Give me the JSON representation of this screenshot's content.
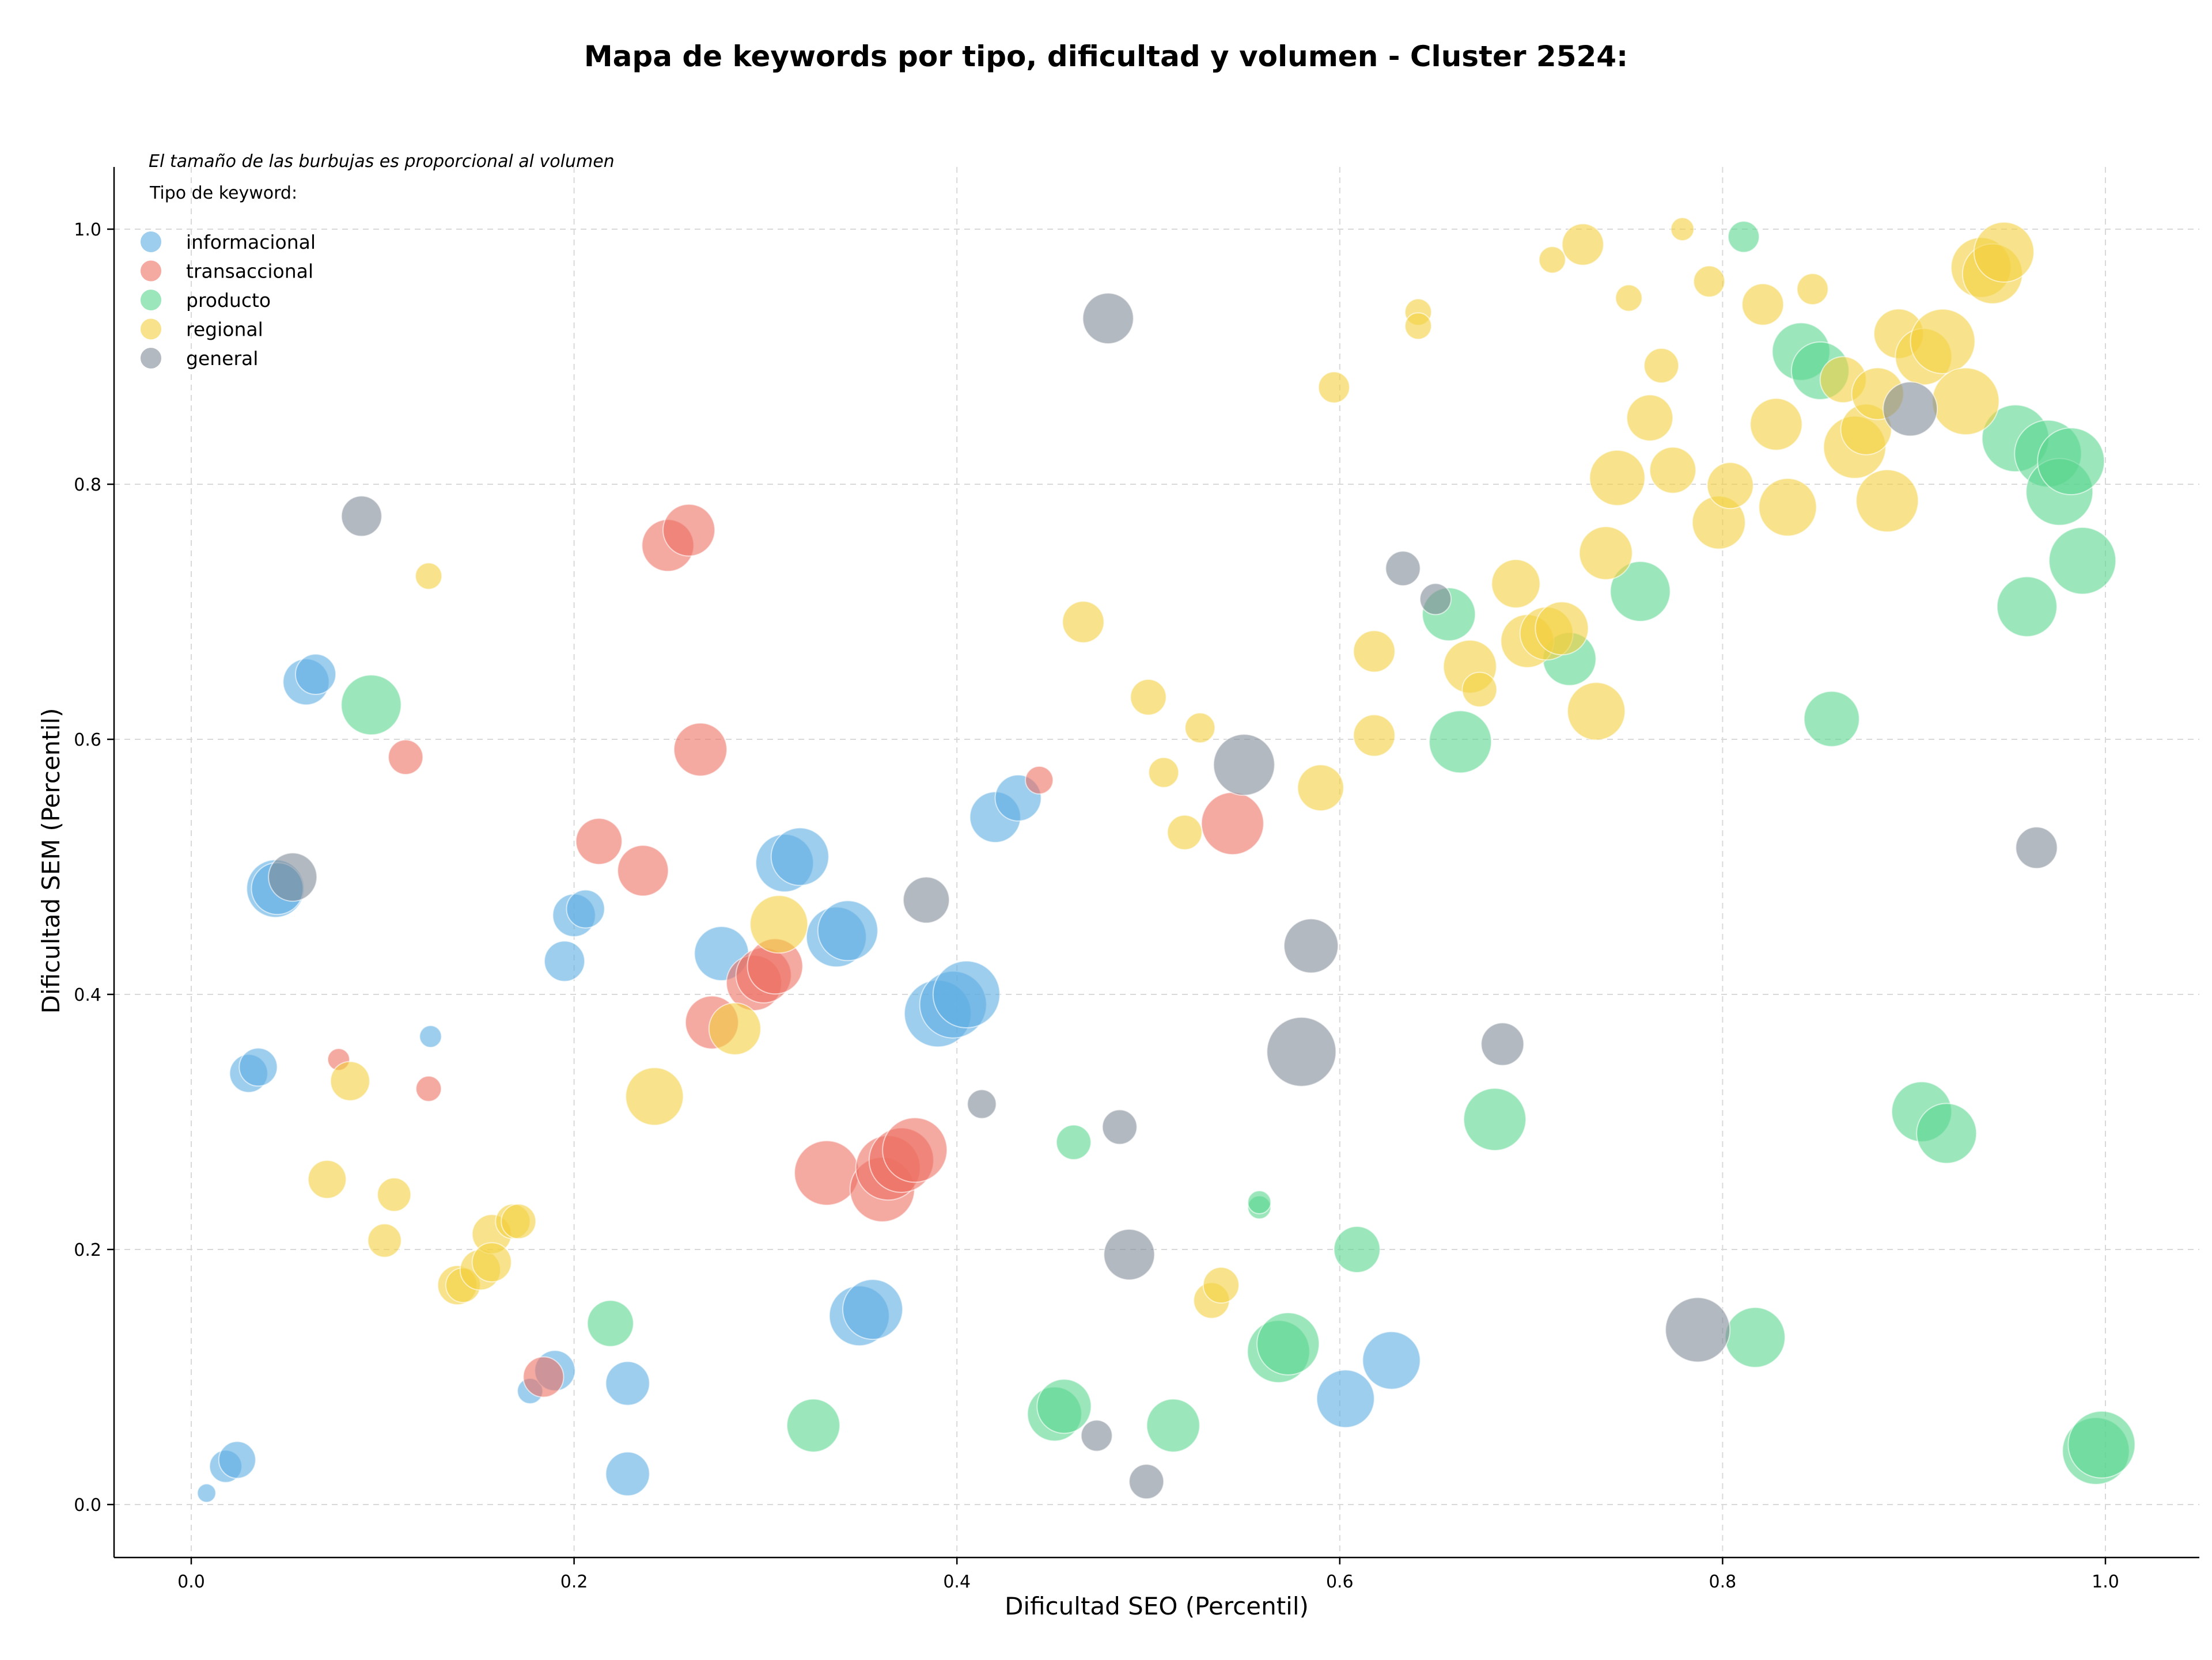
{
  "chart_data": {
    "type": "scatter",
    "title": "Mapa de keywords por tipo, dificultad y volumen - Cluster 2524:",
    "xlabel": "Dificultad SEO (Percentil)",
    "ylabel": "Dificultad SEM (Percentil)",
    "xlim": [
      -0.04,
      1.05
    ],
    "ylim": [
      -0.04,
      1.05
    ],
    "xticks": [
      "0.0",
      "0.2",
      "0.4",
      "0.6",
      "0.8",
      "1.0"
    ],
    "yticks": [
      "0.0",
      "0.2",
      "0.4",
      "0.6",
      "0.8",
      "1.0"
    ],
    "grid": true,
    "legend_position": "top-left",
    "note": "El tamaño de las burbujas es proporcional al volumen",
    "legend_title": "Tipo de keyword:",
    "series": [
      {
        "name": "informacional",
        "color": "#5dade2",
        "points": [
          [
            0.008,
            0.009,
            0.16
          ],
          [
            0.018,
            0.03,
            0.28
          ],
          [
            0.024,
            0.035,
            0.32
          ],
          [
            0.03,
            0.338,
            0.33
          ],
          [
            0.035,
            0.343,
            0.33
          ],
          [
            0.044,
            0.483,
            0.5
          ],
          [
            0.045,
            0.483,
            0.45
          ],
          [
            0.06,
            0.645,
            0.4
          ],
          [
            0.065,
            0.651,
            0.35
          ],
          [
            0.125,
            0.367,
            0.19
          ],
          [
            0.177,
            0.089,
            0.22
          ],
          [
            0.19,
            0.105,
            0.35
          ],
          [
            0.195,
            0.426,
            0.35
          ],
          [
            0.2,
            0.462,
            0.37
          ],
          [
            0.206,
            0.467,
            0.33
          ],
          [
            0.228,
            0.024,
            0.38
          ],
          [
            0.228,
            0.095,
            0.38
          ],
          [
            0.277,
            0.432,
            0.47
          ],
          [
            0.31,
            0.503,
            0.5
          ],
          [
            0.318,
            0.508,
            0.5
          ],
          [
            0.337,
            0.445,
            0.52
          ],
          [
            0.343,
            0.45,
            0.52
          ],
          [
            0.349,
            0.148,
            0.52
          ],
          [
            0.356,
            0.153,
            0.52
          ],
          [
            0.39,
            0.385,
            0.58
          ],
          [
            0.398,
            0.392,
            0.58
          ],
          [
            0.405,
            0.4,
            0.58
          ],
          [
            0.42,
            0.539,
            0.44
          ],
          [
            0.432,
            0.554,
            0.4
          ],
          [
            0.603,
            0.083,
            0.5
          ],
          [
            0.627,
            0.113,
            0.5
          ]
        ]
      },
      {
        "name": "transaccional",
        "color": "#ec7063",
        "points": [
          [
            0.077,
            0.349,
            0.19
          ],
          [
            0.112,
            0.586,
            0.3
          ],
          [
            0.124,
            0.326,
            0.22
          ],
          [
            0.184,
            0.1,
            0.35
          ],
          [
            0.213,
            0.52,
            0.4
          ],
          [
            0.236,
            0.497,
            0.44
          ],
          [
            0.249,
            0.752,
            0.45
          ],
          [
            0.26,
            0.764,
            0.45
          ],
          [
            0.266,
            0.592,
            0.46
          ],
          [
            0.272,
            0.378,
            0.46
          ],
          [
            0.294,
            0.409,
            0.48
          ],
          [
            0.299,
            0.415,
            0.48
          ],
          [
            0.305,
            0.422,
            0.48
          ],
          [
            0.332,
            0.26,
            0.56
          ],
          [
            0.361,
            0.247,
            0.56
          ],
          [
            0.364,
            0.264,
            0.56
          ],
          [
            0.371,
            0.27,
            0.56
          ],
          [
            0.378,
            0.278,
            0.56
          ],
          [
            0.443,
            0.568,
            0.24
          ],
          [
            0.544,
            0.534,
            0.54
          ]
        ]
      },
      {
        "name": "producto",
        "color": "#58d68d",
        "points": [
          [
            0.094,
            0.627,
            0.52
          ],
          [
            0.219,
            0.142,
            0.4
          ],
          [
            0.325,
            0.062,
            0.46
          ],
          [
            0.451,
            0.071,
            0.47
          ],
          [
            0.456,
            0.077,
            0.47
          ],
          [
            0.461,
            0.284,
            0.3
          ],
          [
            0.513,
            0.062,
            0.46
          ],
          [
            0.558,
            0.233,
            0.2
          ],
          [
            0.558,
            0.237,
            0.2
          ],
          [
            0.568,
            0.12,
            0.54
          ],
          [
            0.573,
            0.126,
            0.54
          ],
          [
            0.609,
            0.2,
            0.4
          ],
          [
            0.657,
            0.698,
            0.46
          ],
          [
            0.663,
            0.598,
            0.54
          ],
          [
            0.681,
            0.302,
            0.54
          ],
          [
            0.72,
            0.663,
            0.46
          ],
          [
            0.757,
            0.716,
            0.52
          ],
          [
            0.811,
            0.994,
            0.27
          ],
          [
            0.817,
            0.131,
            0.52
          ],
          [
            0.841,
            0.904,
            0.5
          ],
          [
            0.851,
            0.889,
            0.5
          ],
          [
            0.857,
            0.616,
            0.48
          ],
          [
            0.904,
            0.308,
            0.52
          ],
          [
            0.917,
            0.291,
            0.52
          ],
          [
            0.953,
            0.836,
            0.58
          ],
          [
            0.959,
            0.704,
            0.52
          ],
          [
            0.97,
            0.824,
            0.58
          ],
          [
            0.976,
            0.794,
            0.58
          ],
          [
            0.982,
            0.818,
            0.58
          ],
          [
            0.988,
            0.74,
            0.58
          ],
          [
            0.995,
            0.042,
            0.58
          ],
          [
            0.998,
            0.047,
            0.58
          ]
        ]
      },
      {
        "name": "regional",
        "color": "#f4d03f",
        "points": [
          [
            0.071,
            0.255,
            0.33
          ],
          [
            0.083,
            0.332,
            0.34
          ],
          [
            0.101,
            0.207,
            0.29
          ],
          [
            0.106,
            0.243,
            0.29
          ],
          [
            0.124,
            0.728,
            0.23
          ],
          [
            0.139,
            0.172,
            0.34
          ],
          [
            0.142,
            0.172,
            0.3
          ],
          [
            0.151,
            0.184,
            0.35
          ],
          [
            0.157,
            0.212,
            0.34
          ],
          [
            0.157,
            0.19,
            0.34
          ],
          [
            0.168,
            0.222,
            0.3
          ],
          [
            0.171,
            0.222,
            0.3
          ],
          [
            0.242,
            0.32,
            0.5
          ],
          [
            0.284,
            0.373,
            0.45
          ],
          [
            0.307,
            0.455,
            0.5
          ],
          [
            0.466,
            0.692,
            0.36
          ],
          [
            0.5,
            0.633,
            0.31
          ],
          [
            0.508,
            0.574,
            0.26
          ],
          [
            0.519,
            0.527,
            0.3
          ],
          [
            0.527,
            0.609,
            0.26
          ],
          [
            0.533,
            0.16,
            0.31
          ],
          [
            0.538,
            0.172,
            0.31
          ],
          [
            0.59,
            0.562,
            0.4
          ],
          [
            0.597,
            0.876,
            0.27
          ],
          [
            0.618,
            0.603,
            0.36
          ],
          [
            0.618,
            0.669,
            0.36
          ],
          [
            0.641,
            0.935,
            0.23
          ],
          [
            0.641,
            0.924,
            0.23
          ],
          [
            0.668,
            0.657,
            0.46
          ],
          [
            0.673,
            0.639,
            0.3
          ],
          [
            0.692,
            0.722,
            0.42
          ],
          [
            0.698,
            0.677,
            0.46
          ],
          [
            0.708,
            0.683,
            0.46
          ],
          [
            0.711,
            0.976,
            0.23
          ],
          [
            0.716,
            0.687,
            0.46
          ],
          [
            0.727,
            0.988,
            0.36
          ],
          [
            0.734,
            0.622,
            0.5
          ],
          [
            0.739,
            0.746,
            0.46
          ],
          [
            0.745,
            0.805,
            0.48
          ],
          [
            0.751,
            0.946,
            0.23
          ],
          [
            0.762,
            0.852,
            0.4
          ],
          [
            0.768,
            0.893,
            0.3
          ],
          [
            0.774,
            0.811,
            0.4
          ],
          [
            0.779,
            1.0,
            0.2
          ],
          [
            0.793,
            0.959,
            0.27
          ],
          [
            0.798,
            0.77,
            0.46
          ],
          [
            0.804,
            0.799,
            0.4
          ],
          [
            0.821,
            0.941,
            0.36
          ],
          [
            0.828,
            0.847,
            0.45
          ],
          [
            0.834,
            0.782,
            0.5
          ],
          [
            0.847,
            0.953,
            0.27
          ],
          [
            0.863,
            0.882,
            0.4
          ],
          [
            0.869,
            0.829,
            0.54
          ],
          [
            0.875,
            0.843,
            0.44
          ],
          [
            0.881,
            0.871,
            0.45
          ],
          [
            0.886,
            0.787,
            0.54
          ],
          [
            0.892,
            0.918,
            0.43
          ],
          [
            0.905,
            0.9,
            0.49
          ],
          [
            0.915,
            0.912,
            0.56
          ],
          [
            0.927,
            0.865,
            0.58
          ],
          [
            0.935,
            0.97,
            0.52
          ],
          [
            0.941,
            0.965,
            0.52
          ],
          [
            0.947,
            0.982,
            0.52
          ]
        ]
      },
      {
        "name": "general",
        "color": "#808b96",
        "points": [
          [
            0.053,
            0.492,
            0.42
          ],
          [
            0.089,
            0.775,
            0.35
          ],
          [
            0.384,
            0.474,
            0.4
          ],
          [
            0.413,
            0.314,
            0.25
          ],
          [
            0.473,
            0.054,
            0.27
          ],
          [
            0.479,
            0.93,
            0.44
          ],
          [
            0.485,
            0.296,
            0.3
          ],
          [
            0.49,
            0.196,
            0.44
          ],
          [
            0.499,
            0.018,
            0.3
          ],
          [
            0.55,
            0.58,
            0.53
          ],
          [
            0.585,
            0.438,
            0.47
          ],
          [
            0.58,
            0.355,
            0.6
          ],
          [
            0.633,
            0.734,
            0.3
          ],
          [
            0.65,
            0.71,
            0.27
          ],
          [
            0.685,
            0.361,
            0.37
          ],
          [
            0.787,
            0.137,
            0.56
          ],
          [
            0.898,
            0.859,
            0.47
          ],
          [
            0.964,
            0.515,
            0.36
          ]
        ]
      }
    ]
  }
}
